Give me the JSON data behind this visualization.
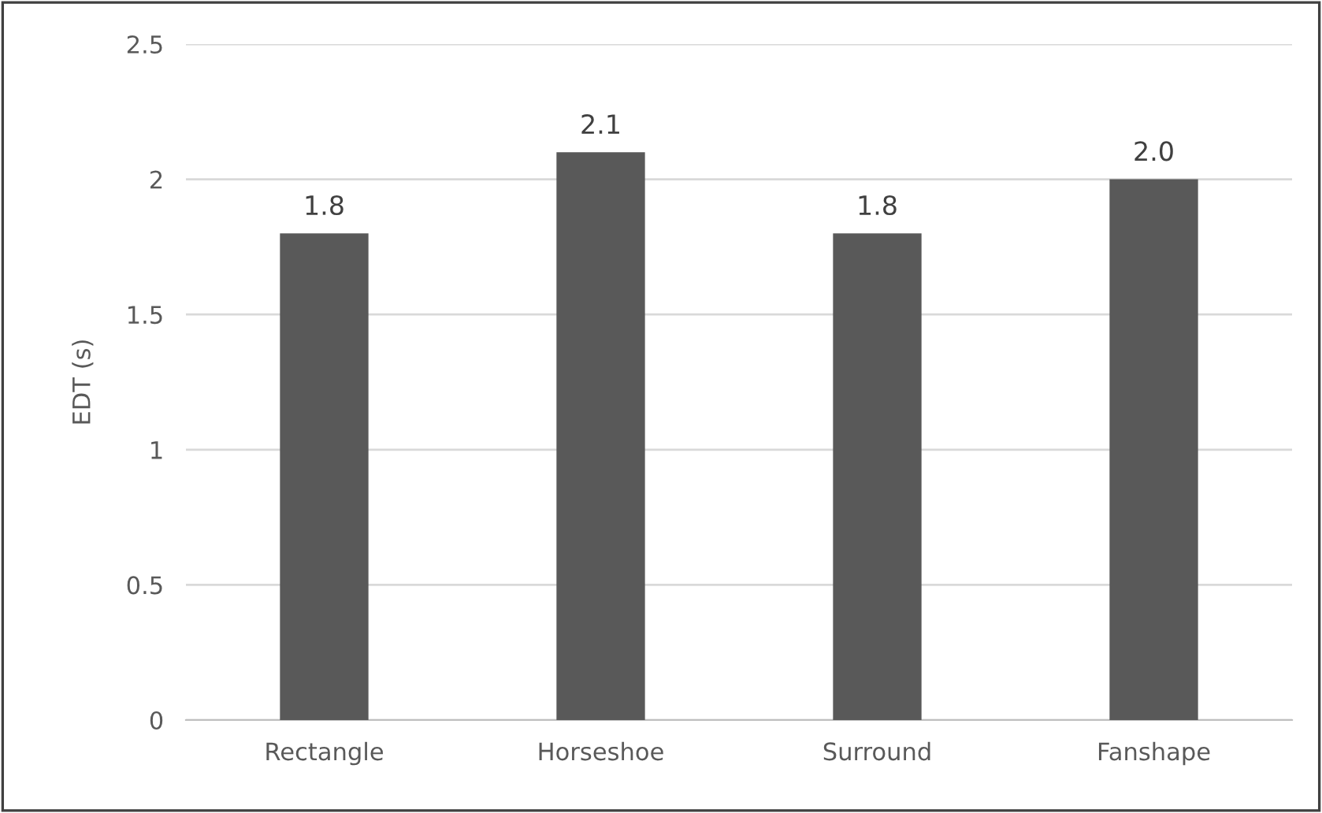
{
  "chart_data": {
    "type": "bar",
    "ylabel": "EDT (s)",
    "categories": [
      "Rectangle",
      "Horseshoe",
      "Surround",
      "Fanshape"
    ],
    "values": [
      1.8,
      2.1,
      1.8,
      2.0
    ],
    "value_labels": [
      "1.8",
      "2.1",
      "1.8",
      "2.0"
    ],
    "color": "#595959",
    "ylim": [
      0,
      2.5
    ],
    "yticks": [
      0,
      0.5,
      1,
      1.5,
      2,
      2.5
    ],
    "grid": "y"
  }
}
